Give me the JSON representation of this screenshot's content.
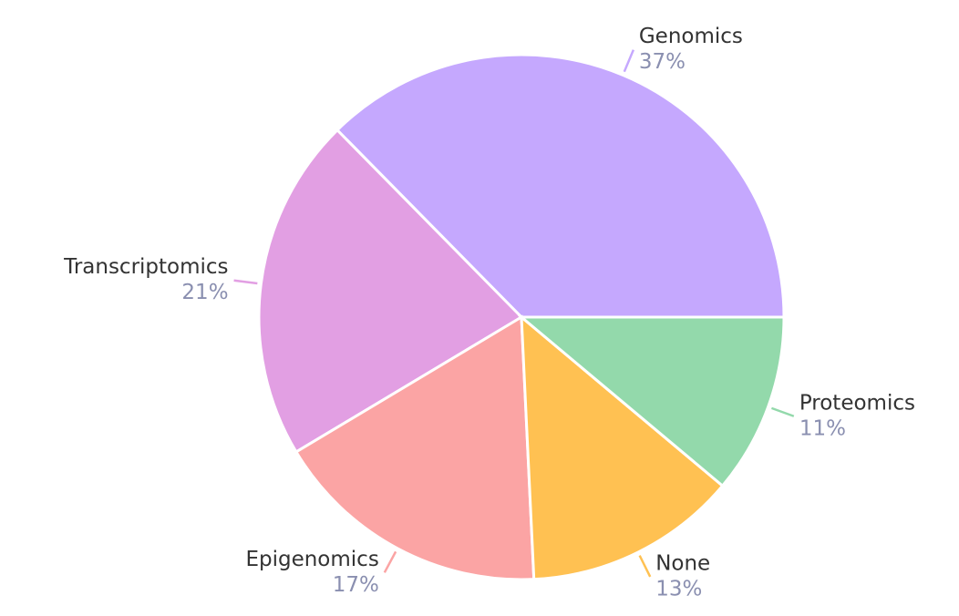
{
  "chart_data": {
    "type": "pie",
    "categories": [
      "Genomics",
      "Transcriptomics",
      "Epigenomics",
      "None",
      "Proteomics"
    ],
    "values": [
      37,
      21,
      17,
      13,
      11
    ],
    "value_labels": [
      "37%",
      "21%",
      "17%",
      "13%",
      "11%"
    ],
    "colors": [
      "#c5a8fe",
      "#e29fe3",
      "#fba4a4",
      "#ffc152",
      "#93d9ab"
    ]
  }
}
